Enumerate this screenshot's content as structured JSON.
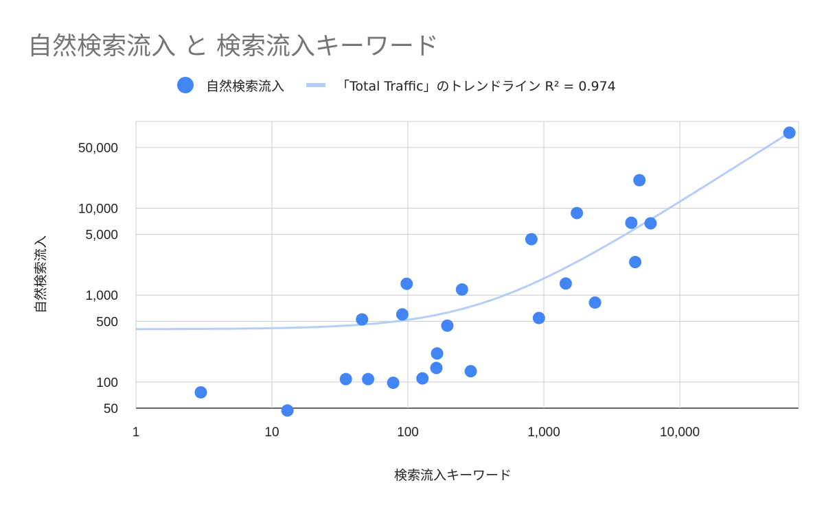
{
  "chart_data": {
    "type": "scatter",
    "title": "自然検索流入 と 検索流入キーワード",
    "xlabel": "検索流入キーワード",
    "ylabel": "自然検索流入",
    "x_scale": "log",
    "y_scale": "log",
    "xlim": [
      1,
      65000
    ],
    "ylim": [
      50,
      80000
    ],
    "x_ticks": [
      {
        "value": 1,
        "label": "1"
      },
      {
        "value": 10,
        "label": "10"
      },
      {
        "value": 100,
        "label": "100"
      },
      {
        "value": 1000,
        "label": "1,000"
      },
      {
        "value": 10000,
        "label": "10,000"
      }
    ],
    "y_ticks": [
      {
        "value": 50,
        "label": "50"
      },
      {
        "value": 100,
        "label": "100"
      },
      {
        "value": 500,
        "label": "500"
      },
      {
        "value": 1000,
        "label": "1,000"
      },
      {
        "value": 5000,
        "label": "5,000"
      },
      {
        "value": 10000,
        "label": "10,000"
      },
      {
        "value": 50000,
        "label": "50,000"
      }
    ],
    "grid": true,
    "legend_position": "top",
    "series": [
      {
        "name": "自然検索流入",
        "color": "#4285f4",
        "points": [
          {
            "x": 3,
            "y": 76
          },
          {
            "x": 13,
            "y": 47
          },
          {
            "x": 35,
            "y": 108
          },
          {
            "x": 46,
            "y": 525
          },
          {
            "x": 51,
            "y": 108
          },
          {
            "x": 78,
            "y": 98
          },
          {
            "x": 91,
            "y": 600
          },
          {
            "x": 98,
            "y": 1350
          },
          {
            "x": 128,
            "y": 110
          },
          {
            "x": 162,
            "y": 145
          },
          {
            "x": 164,
            "y": 213
          },
          {
            "x": 195,
            "y": 445
          },
          {
            "x": 250,
            "y": 1160
          },
          {
            "x": 290,
            "y": 133
          },
          {
            "x": 810,
            "y": 4400
          },
          {
            "x": 920,
            "y": 545
          },
          {
            "x": 1450,
            "y": 1360
          },
          {
            "x": 1750,
            "y": 8800
          },
          {
            "x": 2380,
            "y": 820
          },
          {
            "x": 4400,
            "y": 6800
          },
          {
            "x": 4700,
            "y": 2400
          },
          {
            "x": 5050,
            "y": 21000
          },
          {
            "x": 6100,
            "y": 6700
          },
          {
            "x": 64000,
            "y": 74000
          }
        ]
      }
    ],
    "trendline": {
      "name": "「Total Traffic」のトレンドライン R² = 0.974",
      "color": "#b4cef8",
      "type": "linear",
      "slope": 1.15,
      "intercept": 405,
      "r_squared": 0.974
    }
  }
}
